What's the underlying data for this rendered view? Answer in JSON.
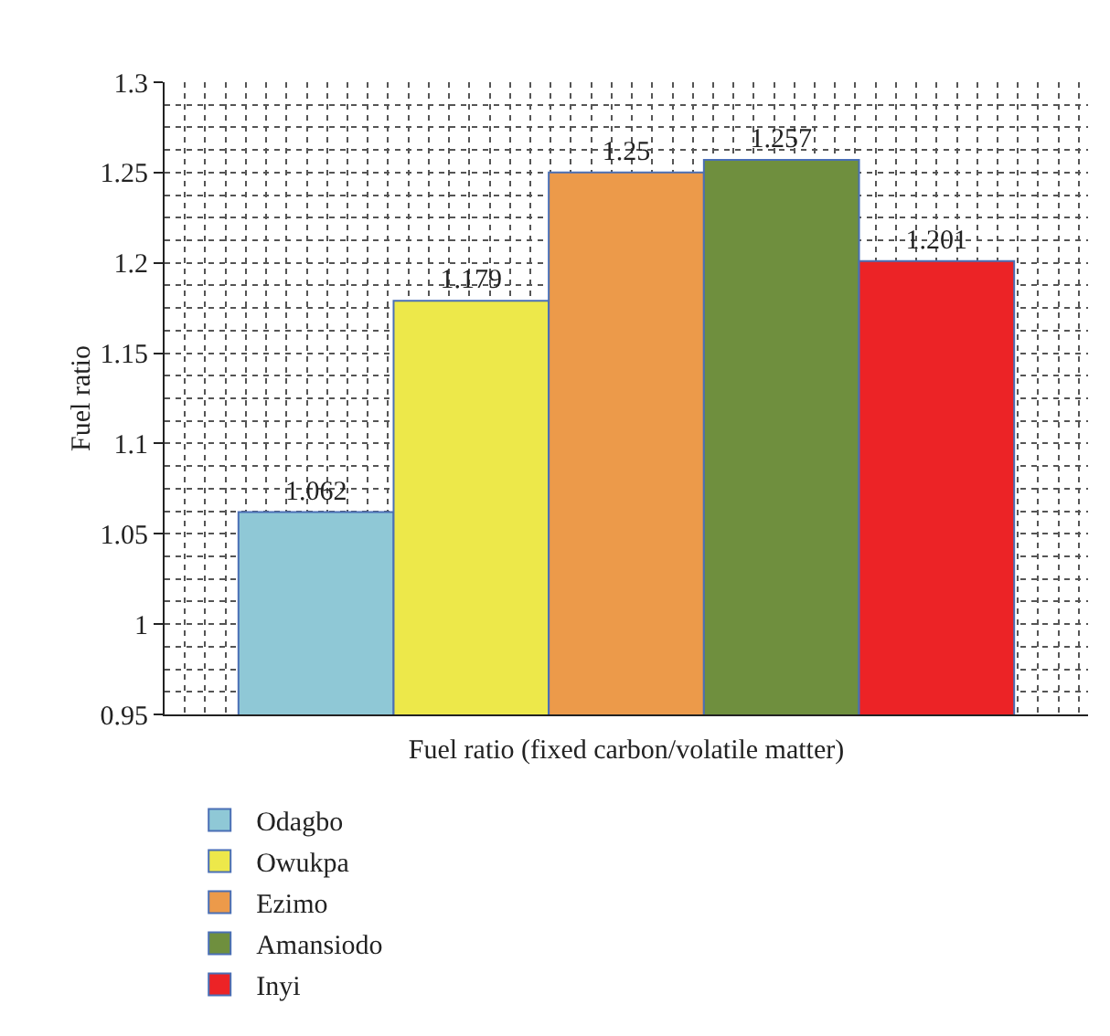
{
  "chart_data": {
    "type": "bar",
    "xlabel": "Fuel ratio (fixed carbon/volatile matter)",
    "ylabel": "Fuel ratio",
    "categories": [
      null
    ],
    "series": [
      {
        "name": "Odagbo",
        "color": "#8fc8d6",
        "values": [
          1.062
        ]
      },
      {
        "name": "Owukpa",
        "color": "#ede84a",
        "values": [
          1.179
        ]
      },
      {
        "name": "Ezimo",
        "color": "#ec9a4a",
        "values": [
          1.25
        ]
      },
      {
        "name": "Amansiodo",
        "color": "#6f8f3e",
        "values": [
          1.257
        ]
      },
      {
        "name": "Inyi",
        "color": "#ec2326",
        "values": [
          1.201
        ]
      }
    ],
    "ylim": [
      0.95,
      1.3
    ],
    "yticks": [
      0.95,
      1,
      1.05,
      1.1,
      1.15,
      1.2,
      1.25,
      1.3
    ],
    "data_labels": true,
    "grid": true,
    "legend": "bottom"
  }
}
